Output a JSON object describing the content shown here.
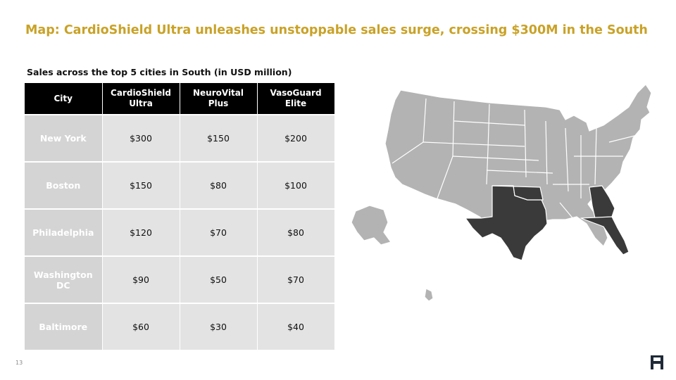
{
  "slide": {
    "title": "Map: CardioShield Ultra unleashes unstoppable sales surge, crossing $300M in the South",
    "subtitle": "Sales across the top 5 cities in South (in USD million)",
    "page_number": "13"
  },
  "table": {
    "headers": [
      "City",
      "CardioShield Ultra",
      "NeuroVital Plus",
      "VasoGuard Elite"
    ],
    "rows": [
      {
        "city": "New York",
        "cardioshield": "$300",
        "neurovital": "$150",
        "vasoguard": "$200"
      },
      {
        "city": "Boston",
        "cardioshield": "$150",
        "neurovital": "$80",
        "vasoguard": "$100"
      },
      {
        "city": "Philadelphia",
        "cardioshield": "$120",
        "neurovital": "$70",
        "vasoguard": "$80"
      },
      {
        "city": "Washington DC",
        "cardioshield": "$90",
        "neurovital": "$50",
        "vasoguard": "$70"
      },
      {
        "city": "Baltimore",
        "cardioshield": "$60",
        "neurovital": "$30",
        "vasoguard": "$40"
      }
    ]
  },
  "map": {
    "highlighted_states": [
      "Texas",
      "Oklahoma",
      "Georgia",
      "Florida"
    ],
    "base_color": "#b3b3b3",
    "highlight_color": "#3a3a3a"
  },
  "colors": {
    "title": "#C9A227",
    "table_header": "#000000"
  },
  "icons": [
    "logo-icon"
  ]
}
